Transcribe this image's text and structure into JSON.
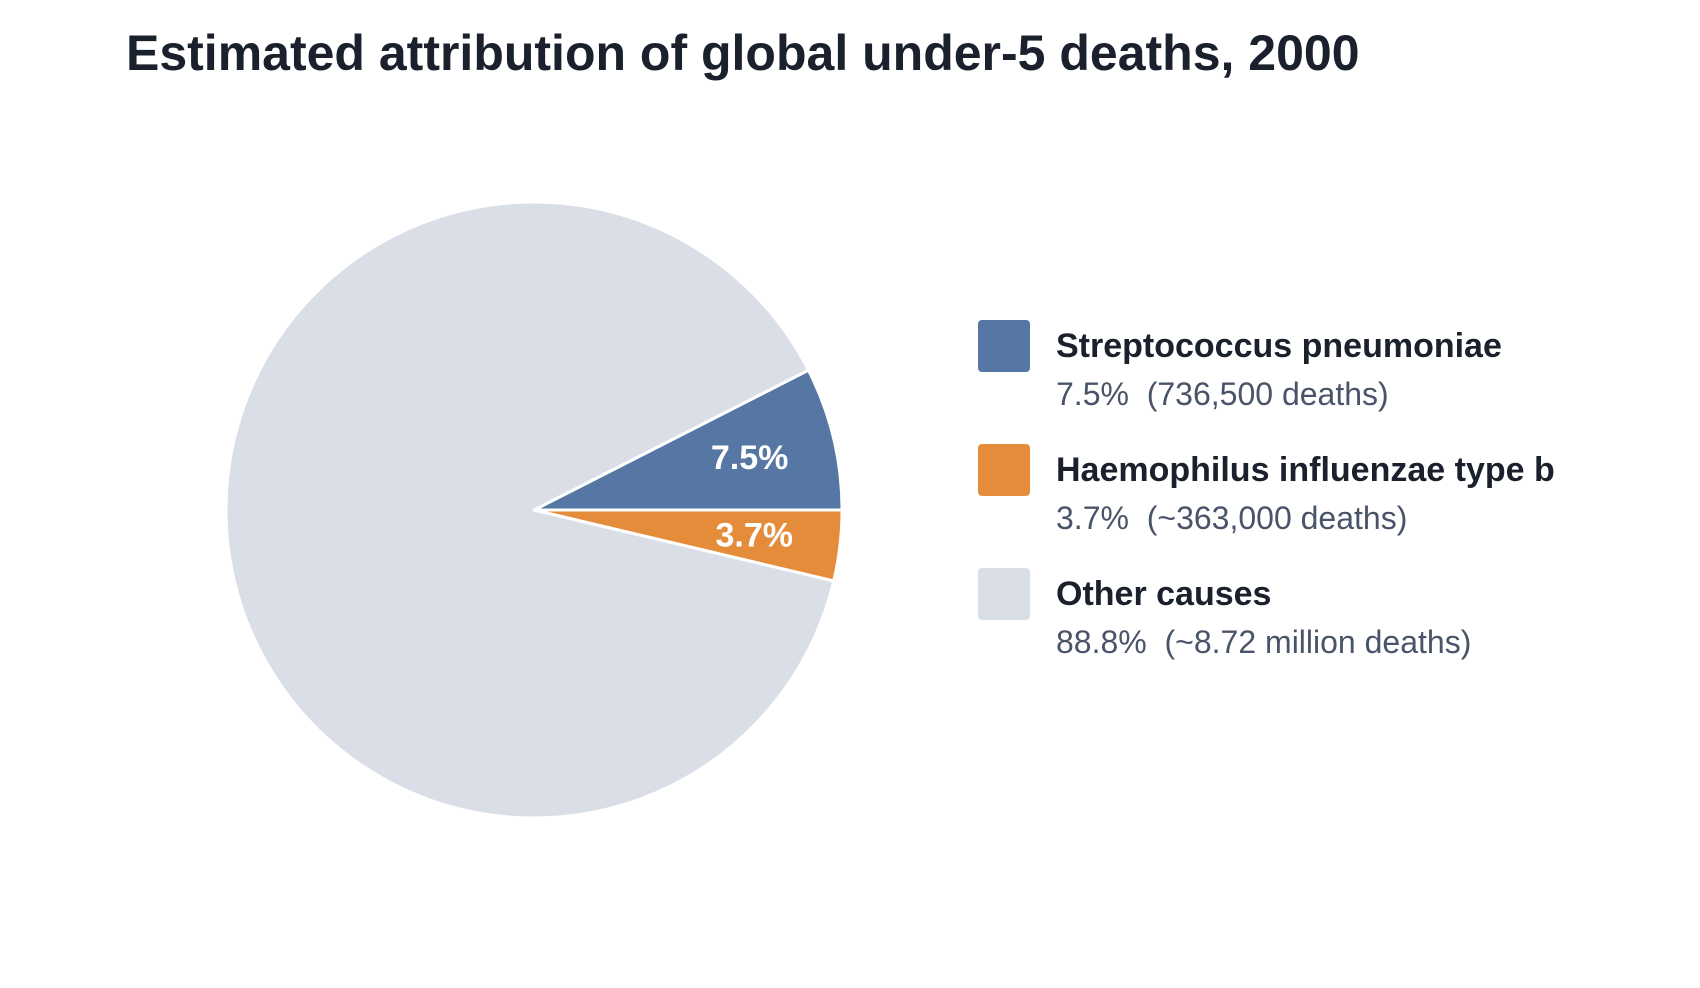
{
  "chart_data": {
    "type": "pie",
    "title": "Estimated attribution of global under-5 deaths, 2000",
    "slices": [
      {
        "name": "Streptococcus pneumoniae",
        "value": 7.5,
        "label": "7.5%",
        "detail": "7.5%  (736,500 deaths)",
        "color": "#5677a3"
      },
      {
        "name": "Haemophilus influenzae type b",
        "value": 3.7,
        "label": "3.7%",
        "detail": "3.7%  (~363,000 deaths)",
        "color": "#e58c3a"
      },
      {
        "name": "Other causes",
        "value": 88.8,
        "label": "",
        "detail": "88.8%  (~8.72 million deaths)",
        "color": "#dadee7"
      }
    ],
    "legend_position": "right"
  }
}
